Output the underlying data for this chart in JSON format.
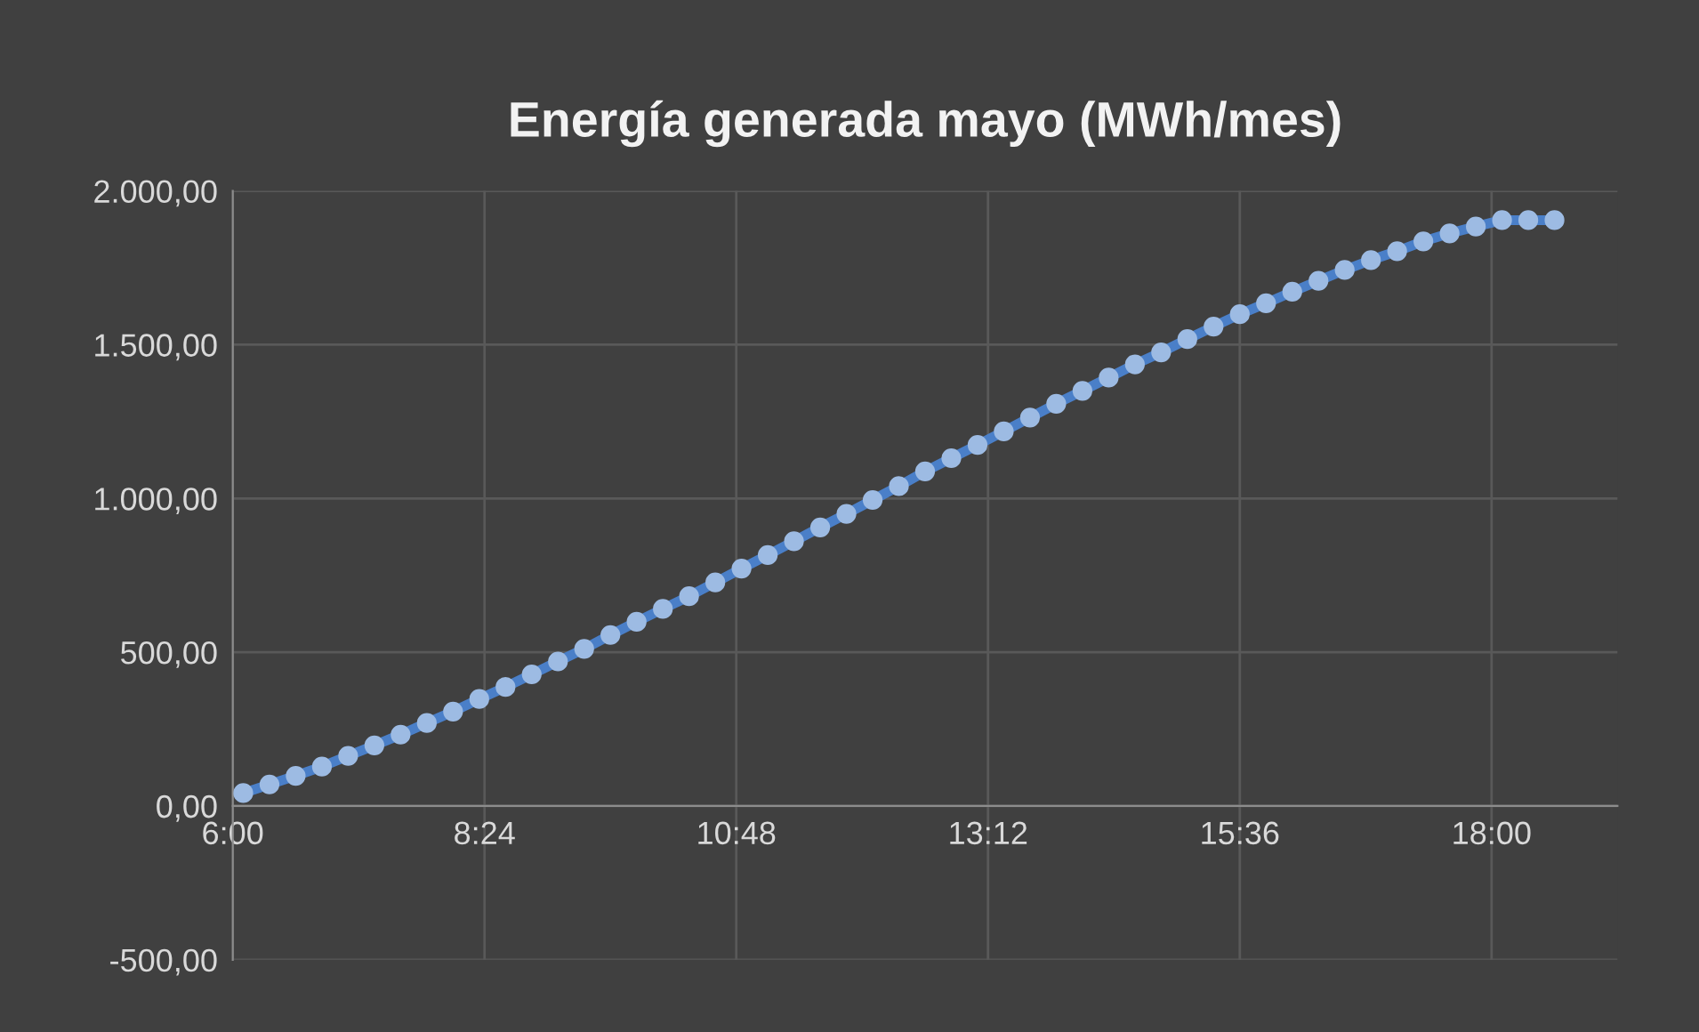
{
  "chart_data": {
    "type": "line",
    "title": "Energía generada mayo (MWh/mes)",
    "x": [
      6.1,
      6.35,
      6.6,
      6.85,
      7.1,
      7.35,
      7.6,
      7.85,
      8.1,
      8.35,
      8.6,
      8.85,
      9.1,
      9.35,
      9.6,
      9.85,
      10.1,
      10.35,
      10.6,
      10.85,
      11.1,
      11.35,
      11.6,
      11.85,
      12.1,
      12.35,
      12.6,
      12.85,
      13.1,
      13.35,
      13.6,
      13.85,
      14.1,
      14.35,
      14.6,
      14.85,
      15.1,
      15.35,
      15.6,
      15.85,
      16.1,
      16.35,
      16.6,
      16.85,
      17.1,
      17.35,
      17.6,
      17.85,
      18.1,
      18.35,
      18.6
    ],
    "series": [
      {
        "color": "#4a7fc8",
        "values": [
          42,
          70,
          98,
          128,
          163,
          197,
          232,
          270,
          307,
          348,
          387,
          428,
          470,
          511,
          556,
          599,
          641,
          682,
          727,
          772,
          816,
          861,
          906,
          950,
          995,
          1040,
          1088,
          1131,
          1174,
          1218,
          1263,
          1308,
          1350,
          1393,
          1436,
          1475,
          1518,
          1559,
          1599,
          1635,
          1672,
          1708,
          1743,
          1775,
          1804,
          1836,
          1862,
          1884,
          1905,
          1905,
          1905
        ]
      }
    ],
    "xlim": [
      6,
      19.2
    ],
    "xticks": [
      {
        "value": 6,
        "label": "6:00"
      },
      {
        "value": 8.4,
        "label": "8:24"
      },
      {
        "value": 10.8,
        "label": "10:48"
      },
      {
        "value": 13.2,
        "label": "13:12"
      },
      {
        "value": 15.6,
        "label": "15:36"
      },
      {
        "value": 18,
        "label": "18:00"
      }
    ],
    "ylim": [
      -500,
      2000
    ],
    "yticks": [
      {
        "value": -500,
        "label": "-500,00"
      },
      {
        "value": 0,
        "label": "0,00"
      },
      {
        "value": 500,
        "label": "500,00"
      },
      {
        "value": 1000,
        "label": "1.000,00"
      },
      {
        "value": 1500,
        "label": "1.500,00"
      },
      {
        "value": 2000,
        "label": "2.000,00"
      }
    ],
    "grid": true,
    "marker": "circle",
    "line_style": "solid"
  }
}
